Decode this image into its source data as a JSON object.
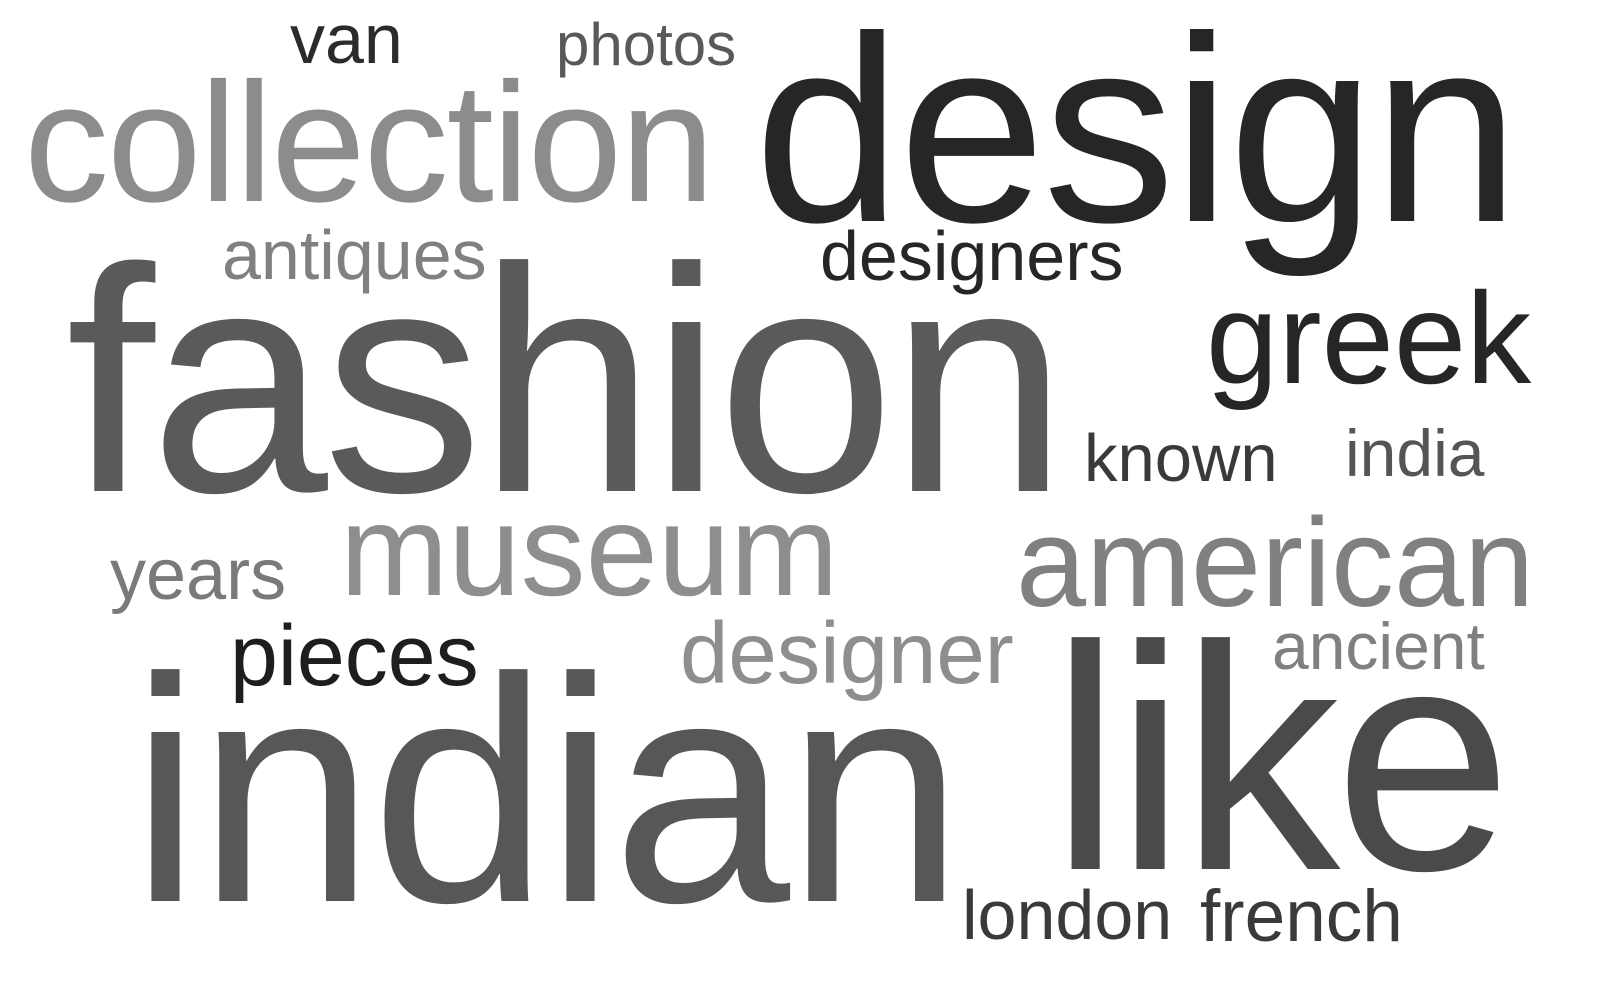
{
  "words": [
    {
      "text": "van",
      "color": "#2b2b2b"
    },
    {
      "text": "photos",
      "color": "#595959"
    },
    {
      "text": "collection",
      "color": "#8c8c8c"
    },
    {
      "text": "design",
      "color": "#262626"
    },
    {
      "text": "antiques",
      "color": "#808080"
    },
    {
      "text": "designers",
      "color": "#262626"
    },
    {
      "text": "fashion",
      "color": "#5a5a5a"
    },
    {
      "text": "greek",
      "color": "#262626"
    },
    {
      "text": "known",
      "color": "#3a3a3a"
    },
    {
      "text": "india",
      "color": "#555555"
    },
    {
      "text": "years",
      "color": "#7a7a7a"
    },
    {
      "text": "museum",
      "color": "#8e8e8e"
    },
    {
      "text": "american",
      "color": "#808080"
    },
    {
      "text": "pieces",
      "color": "#1e1e1e"
    },
    {
      "text": "designer",
      "color": "#8e8e8e"
    },
    {
      "text": "ancient",
      "color": "#808080"
    },
    {
      "text": "indian",
      "color": "#575757"
    },
    {
      "text": "like",
      "color": "#4a4a4a"
    },
    {
      "text": "london",
      "color": "#3a3a3a"
    },
    {
      "text": "french",
      "color": "#3a3a3a"
    }
  ]
}
